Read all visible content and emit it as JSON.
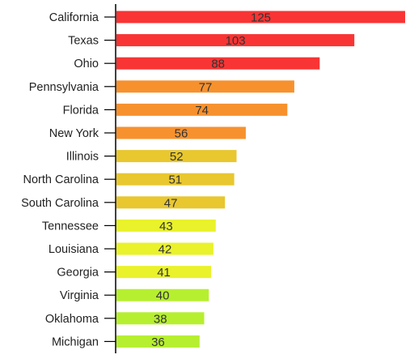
{
  "chart_data": {
    "type": "bar",
    "orientation": "horizontal",
    "title": "",
    "xlabel": "",
    "ylabel": "",
    "xlim": [
      0,
      125
    ],
    "grid": false,
    "legend": "none",
    "data_labels": "on-bar",
    "categories": [
      "California",
      "Texas",
      "Ohio",
      "Pennsylvania",
      "Florida",
      "New York",
      "Illinois",
      "North Carolina",
      "South Carolina",
      "Tennessee",
      "Louisiana",
      "Georgia",
      "Virginia",
      "Oklahoma",
      "Michigan"
    ],
    "values": [
      125,
      103,
      88,
      77,
      74,
      56,
      52,
      51,
      47,
      43,
      42,
      41,
      40,
      38,
      36
    ],
    "colors": [
      "#f93434",
      "#f93434",
      "#f93434",
      "#f7912d",
      "#f7912d",
      "#f7912d",
      "#e8c72f",
      "#e8c72f",
      "#e8c72f",
      "#e9f22b",
      "#e9f22b",
      "#e9f22b",
      "#b6ef2f",
      "#b6ef2f",
      "#b6ef2f"
    ]
  }
}
